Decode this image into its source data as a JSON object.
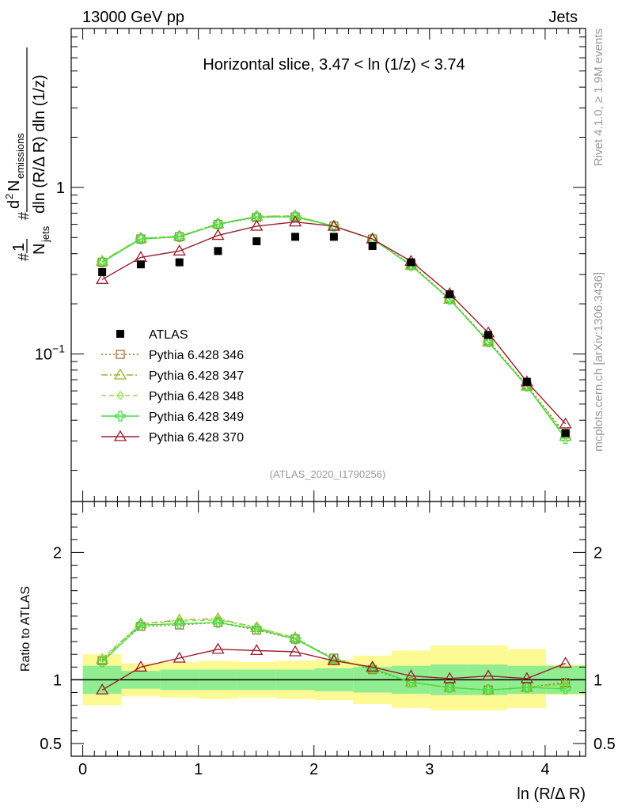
{
  "header": {
    "left": "13000 GeV pp",
    "right": "Jets"
  },
  "side_labels": {
    "rivet": "Rivet 4.1.0, ≥ 1.9M events",
    "mcplots": "mcplots.cern.ch [arXiv:1306.3436]"
  },
  "chart_data": {
    "type": "line",
    "title": "Horizontal slice, 3.47 < ln (1/z) < 3.74",
    "watermark": "(ATLAS_2020_I1790256)",
    "xlabel": "ln (R/Δ R)",
    "ylabel_main": "1/N_jets d² N_emissions / dln (R/Δ R) dln (1/z)",
    "ylabel_ratio": "Ratio to ATLAS",
    "xlim": [
      -0.1,
      4.35
    ],
    "ylim_main": [
      0.013,
      9.0
    ],
    "ylim_ratio": [
      0.4,
      2.4
    ],
    "y_scale_main": "log",
    "x_ticks": [
      0,
      1,
      2,
      3,
      4
    ],
    "x_tick_labels": [
      "0",
      "1",
      "2",
      "3",
      "4"
    ],
    "y_ticks_main": [
      0.1,
      1
    ],
    "y_tick_labels_main": [
      "10^-1",
      "1"
    ],
    "y_ticks_ratio": [
      0.5,
      1,
      2
    ],
    "y_tick_labels_ratio": [
      "0.5",
      "1",
      "2"
    ],
    "x": [
      0.168,
      0.502,
      0.836,
      1.17,
      1.504,
      1.838,
      2.172,
      2.506,
      2.84,
      3.174,
      3.508,
      3.842,
      4.176
    ],
    "bin_edges": [
      0,
      0.335,
      0.669,
      1.003,
      1.337,
      1.671,
      2.005,
      2.339,
      2.673,
      3.007,
      3.341,
      3.675,
      4.009,
      4.343
    ],
    "band_inner": [
      [
        0.89,
        1.11
      ],
      [
        0.93,
        1.07
      ],
      [
        0.92,
        1.08
      ],
      [
        0.92,
        1.08
      ],
      [
        0.92,
        1.08
      ],
      [
        0.92,
        1.08
      ],
      [
        0.91,
        1.09
      ],
      [
        0.9,
        1.1
      ],
      [
        0.89,
        1.11
      ],
      [
        0.88,
        1.12
      ],
      [
        0.88,
        1.12
      ],
      [
        0.89,
        1.11
      ],
      [
        0.89,
        1.11
      ]
    ],
    "band_outer": [
      [
        0.8,
        1.2
      ],
      [
        0.87,
        1.13
      ],
      [
        0.86,
        1.14
      ],
      [
        0.85,
        1.15
      ],
      [
        0.86,
        1.14
      ],
      [
        0.85,
        1.15
      ],
      [
        0.84,
        1.16
      ],
      [
        0.81,
        1.19
      ],
      [
        0.78,
        1.23
      ],
      [
        0.76,
        1.27
      ],
      [
        0.76,
        1.27
      ],
      [
        0.78,
        1.24
      ],
      [
        0.88,
        1.12
      ]
    ],
    "series": [
      {
        "name": "ATLAS",
        "marker": "square",
        "color": "#000000",
        "dash": "",
        "values": [
          0.31,
          0.345,
          0.355,
          0.415,
          0.475,
          0.505,
          0.505,
          0.445,
          0.355,
          0.228,
          0.13,
          0.068,
          0.0335
        ]
      },
      {
        "name": "Pythia 6.428 346",
        "marker": "open-square",
        "color": "#a0702e",
        "dash": "2,3",
        "values": [
          0.355,
          0.49,
          0.505,
          0.6,
          0.66,
          0.665,
          0.585,
          0.49,
          0.345,
          0.215,
          0.12,
          0.065,
          0.033
        ]
      },
      {
        "name": "Pythia 6.428 347",
        "marker": "open-triangle",
        "color": "#9ab52a",
        "dash": "8,3,2,3",
        "values": [
          0.36,
          0.495,
          0.51,
          0.605,
          0.67,
          0.675,
          0.585,
          0.49,
          0.34,
          0.213,
          0.118,
          0.064,
          0.032
        ]
      },
      {
        "name": "Pythia 6.428 348",
        "marker": "open-diamond",
        "color": "#8ee04a",
        "dash": "6,4",
        "values": [
          0.36,
          0.495,
          0.51,
          0.605,
          0.67,
          0.675,
          0.585,
          0.49,
          0.34,
          0.213,
          0.118,
          0.064,
          0.032
        ]
      },
      {
        "name": "Pythia 6.428 349",
        "marker": "cross",
        "color": "#44dd44",
        "dash": "",
        "values": [
          0.355,
          0.49,
          0.505,
          0.6,
          0.665,
          0.665,
          0.585,
          0.49,
          0.34,
          0.213,
          0.118,
          0.064,
          0.031
        ]
      },
      {
        "name": "Pythia 6.428 370",
        "marker": "open-triangle",
        "color": "#9b1d2a",
        "dash": "",
        "values": [
          0.28,
          0.38,
          0.415,
          0.515,
          0.585,
          0.62,
          0.585,
          0.49,
          0.36,
          0.23,
          0.134,
          0.068,
          0.038
        ]
      }
    ],
    "ratio_series": [
      {
        "name": "Pythia 6.428 346",
        "values": [
          1.15,
          1.42,
          1.43,
          1.45,
          1.39,
          1.32,
          1.17,
          1.08,
          0.98,
          0.94,
          0.92,
          0.94,
          0.98
        ]
      },
      {
        "name": "Pythia 6.428 347",
        "values": [
          1.16,
          1.44,
          1.47,
          1.48,
          1.41,
          1.33,
          1.16,
          1.09,
          0.98,
          0.94,
          0.92,
          0.94,
          0.97
        ]
      },
      {
        "name": "Pythia 6.428 348",
        "values": [
          1.17,
          1.44,
          1.46,
          1.47,
          1.41,
          1.33,
          1.16,
          1.09,
          0.98,
          0.94,
          0.92,
          0.94,
          0.96
        ]
      },
      {
        "name": "Pythia 6.428 349",
        "values": [
          1.14,
          1.43,
          1.44,
          1.45,
          1.4,
          1.32,
          1.16,
          1.09,
          0.98,
          0.94,
          0.92,
          0.94,
          0.93
        ]
      },
      {
        "name": "Pythia 6.428 370",
        "values": [
          0.92,
          1.1,
          1.17,
          1.24,
          1.23,
          1.22,
          1.15,
          1.1,
          1.03,
          1.01,
          1.03,
          1.01,
          1.13
        ]
      }
    ]
  }
}
